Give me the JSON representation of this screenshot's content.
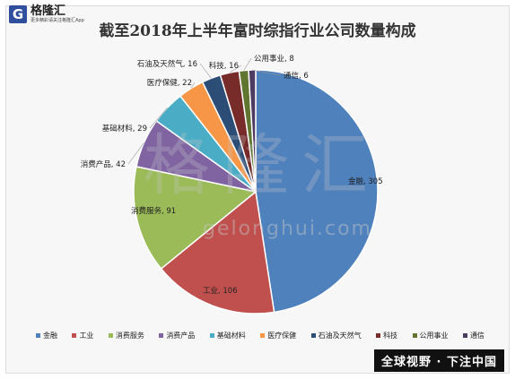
{
  "logo": {
    "mark": "G",
    "name": "格隆汇",
    "slogan": "更多精彩请关注格隆汇App"
  },
  "watermark": {
    "text": "格隆汇",
    "url": "gelonghui.com"
  },
  "footer": {
    "text": "全球视野 · 下注中国"
  },
  "chart_data": {
    "type": "pie",
    "title": "截至2018年上半年富时综指行业公司数量构成",
    "legend_position": "bottom",
    "slices": [
      {
        "name": "金融",
        "value": 305,
        "color": "#4f81bd"
      },
      {
        "name": "工业",
        "value": 106,
        "color": "#c0504d"
      },
      {
        "name": "消费服务",
        "value": 91,
        "color": "#9bbb59"
      },
      {
        "name": "消费产品",
        "value": 42,
        "color": "#8064a2"
      },
      {
        "name": "基础材料",
        "value": 29,
        "color": "#4bacc6"
      },
      {
        "name": "医疗保健",
        "value": 22,
        "color": "#f79646"
      },
      {
        "name": "石油及天然气",
        "value": 16,
        "color": "#2c4d75"
      },
      {
        "name": "科技",
        "value": 16,
        "color": "#772c2a"
      },
      {
        "name": "公用事业",
        "value": 8,
        "color": "#5f7530"
      },
      {
        "name": "通信",
        "value": 6,
        "color": "#4d3b62"
      }
    ]
  }
}
